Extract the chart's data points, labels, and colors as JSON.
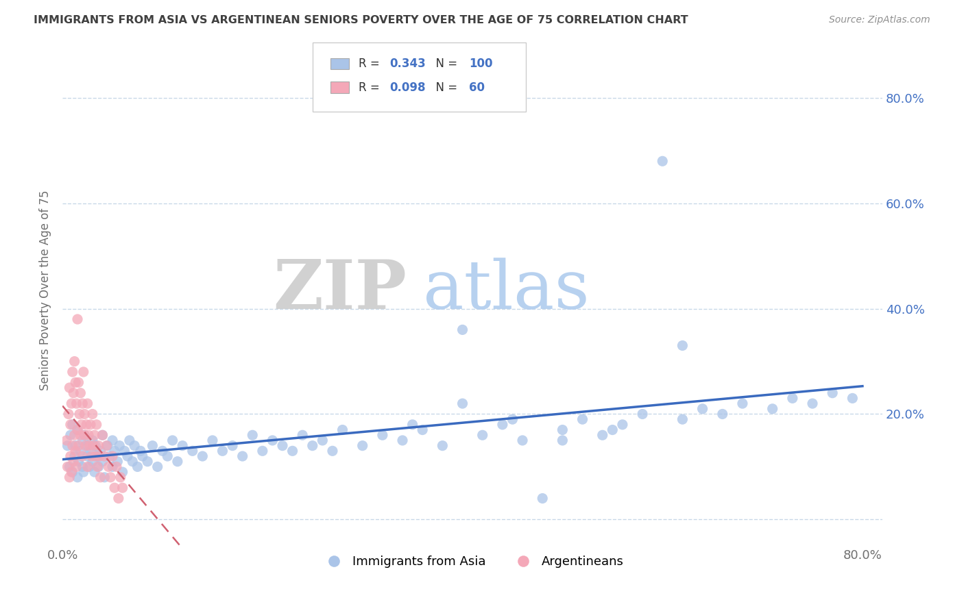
{
  "title": "IMMIGRANTS FROM ASIA VS ARGENTINEAN SENIORS POVERTY OVER THE AGE OF 75 CORRELATION CHART",
  "source": "Source: ZipAtlas.com",
  "ylabel": "Seniors Poverty Over the Age of 75",
  "xlim": [
    0.0,
    0.82
  ],
  "ylim": [
    -0.05,
    0.92
  ],
  "y_tick_positions": [
    0.0,
    0.2,
    0.4,
    0.6,
    0.8
  ],
  "y_tick_labels_right": [
    "",
    "20.0%",
    "40.0%",
    "60.0%",
    "80.0%"
  ],
  "r_blue": 0.343,
  "n_blue": 100,
  "r_pink": 0.098,
  "n_pink": 60,
  "blue_color": "#aac4e8",
  "pink_color": "#f4a8b8",
  "blue_line_color": "#3a6abf",
  "pink_line_color": "#d06070",
  "legend_label_blue": "Immigrants from Asia",
  "legend_label_pink": "Argentineans",
  "watermark_zip": "ZIP",
  "watermark_atlas": "atlas",
  "background_color": "#ffffff",
  "grid_color": "#c8d8e8",
  "title_color": "#404040",
  "source_color": "#909090",
  "axis_label_color": "#707070",
  "blue_scatter_x": [
    0.005,
    0.007,
    0.008,
    0.01,
    0.01,
    0.012,
    0.013,
    0.015,
    0.015,
    0.016,
    0.018,
    0.02,
    0.02,
    0.021,
    0.022,
    0.025,
    0.025,
    0.027,
    0.028,
    0.03,
    0.03,
    0.032,
    0.033,
    0.035,
    0.036,
    0.038,
    0.04,
    0.04,
    0.042,
    0.045,
    0.047,
    0.05,
    0.05,
    0.052,
    0.055,
    0.057,
    0.06,
    0.062,
    0.065,
    0.067,
    0.07,
    0.072,
    0.075,
    0.078,
    0.08,
    0.085,
    0.09,
    0.095,
    0.1,
    0.105,
    0.11,
    0.115,
    0.12,
    0.13,
    0.14,
    0.15,
    0.16,
    0.17,
    0.18,
    0.19,
    0.2,
    0.21,
    0.22,
    0.23,
    0.24,
    0.25,
    0.26,
    0.27,
    0.28,
    0.3,
    0.32,
    0.34,
    0.36,
    0.38,
    0.4,
    0.42,
    0.44,
    0.46,
    0.48,
    0.5,
    0.52,
    0.54,
    0.56,
    0.58,
    0.6,
    0.62,
    0.64,
    0.66,
    0.68,
    0.71,
    0.73,
    0.75,
    0.77,
    0.79,
    0.62,
    0.5,
    0.55,
    0.45,
    0.4,
    0.35
  ],
  "blue_scatter_y": [
    0.14,
    0.1,
    0.16,
    0.09,
    0.18,
    0.12,
    0.14,
    0.08,
    0.17,
    0.11,
    0.13,
    0.1,
    0.15,
    0.09,
    0.16,
    0.12,
    0.14,
    0.1,
    0.13,
    0.11,
    0.15,
    0.09,
    0.14,
    0.12,
    0.1,
    0.13,
    0.11,
    0.16,
    0.08,
    0.14,
    0.12,
    0.1,
    0.15,
    0.13,
    0.11,
    0.14,
    0.09,
    0.13,
    0.12,
    0.15,
    0.11,
    0.14,
    0.1,
    0.13,
    0.12,
    0.11,
    0.14,
    0.1,
    0.13,
    0.12,
    0.15,
    0.11,
    0.14,
    0.13,
    0.12,
    0.15,
    0.13,
    0.14,
    0.12,
    0.16,
    0.13,
    0.15,
    0.14,
    0.13,
    0.16,
    0.14,
    0.15,
    0.13,
    0.17,
    0.14,
    0.16,
    0.15,
    0.17,
    0.14,
    0.36,
    0.16,
    0.18,
    0.15,
    0.04,
    0.17,
    0.19,
    0.16,
    0.18,
    0.2,
    0.68,
    0.19,
    0.21,
    0.2,
    0.22,
    0.21,
    0.23,
    0.22,
    0.24,
    0.23,
    0.33,
    0.15,
    0.17,
    0.19,
    0.22,
    0.18
  ],
  "pink_scatter_x": [
    0.004,
    0.005,
    0.006,
    0.007,
    0.007,
    0.008,
    0.008,
    0.009,
    0.009,
    0.01,
    0.01,
    0.011,
    0.011,
    0.012,
    0.012,
    0.013,
    0.013,
    0.014,
    0.014,
    0.015,
    0.015,
    0.016,
    0.016,
    0.017,
    0.018,
    0.018,
    0.019,
    0.02,
    0.02,
    0.021,
    0.022,
    0.022,
    0.023,
    0.024,
    0.025,
    0.025,
    0.026,
    0.027,
    0.028,
    0.029,
    0.03,
    0.031,
    0.032,
    0.033,
    0.034,
    0.035,
    0.036,
    0.037,
    0.038,
    0.04,
    0.042,
    0.044,
    0.046,
    0.048,
    0.05,
    0.052,
    0.054,
    0.056,
    0.058,
    0.06
  ],
  "pink_scatter_y": [
    0.15,
    0.1,
    0.2,
    0.08,
    0.25,
    0.12,
    0.18,
    0.09,
    0.22,
    0.14,
    0.28,
    0.11,
    0.24,
    0.16,
    0.3,
    0.13,
    0.26,
    0.1,
    0.22,
    0.17,
    0.38,
    0.14,
    0.26,
    0.2,
    0.16,
    0.24,
    0.18,
    0.22,
    0.12,
    0.28,
    0.16,
    0.2,
    0.14,
    0.18,
    0.22,
    0.1,
    0.16,
    0.14,
    0.18,
    0.12,
    0.2,
    0.14,
    0.16,
    0.12,
    0.18,
    0.1,
    0.14,
    0.12,
    0.08,
    0.16,
    0.12,
    0.14,
    0.1,
    0.08,
    0.12,
    0.06,
    0.1,
    0.04,
    0.08,
    0.06
  ]
}
